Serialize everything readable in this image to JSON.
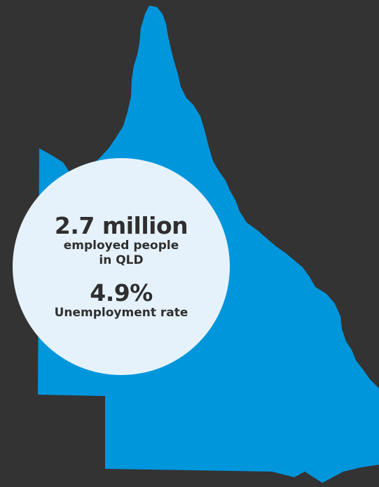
{
  "map": {
    "region_color": "#0096dc",
    "background_color": "#333333"
  },
  "stats": {
    "employed_value": "2.7 million",
    "employed_label_line1": "employed people",
    "employed_label_line2": "in QLD",
    "unemployment_value": "4.9%",
    "unemployment_label": "Unemployment rate"
  }
}
